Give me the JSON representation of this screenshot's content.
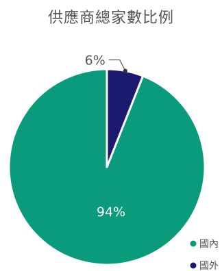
{
  "chart_data": {
    "type": "pie",
    "title": "供應商總家數比例",
    "series": [
      {
        "name": "國內",
        "value": 94,
        "label": "94%",
        "color": "#0a9b7d"
      },
      {
        "name": "國外",
        "value": 6,
        "label": "6%",
        "color": "#1c1a6e"
      }
    ],
    "legend_position": "bottom-right",
    "label_color_inside": "#ffffff",
    "label_color_outside": "#555555"
  }
}
